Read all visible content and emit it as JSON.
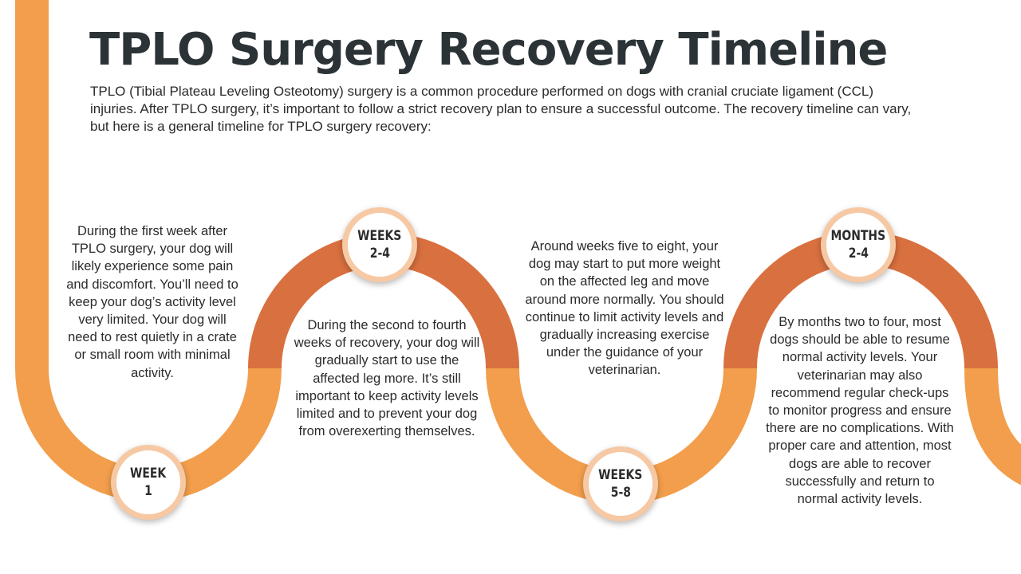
{
  "title": "TPLO Surgery Recovery Timeline",
  "intro": "TPLO (Tibial Plateau Leveling Osteotomy) surgery is a common procedure performed on dogs with cranial cruciate ligament (CCL) injuries. After TPLO surgery, it’s important to follow a strict recovery plan to ensure a successful outcome. The recovery timeline can vary, but here is a general timeline for TPLO surgery recovery:",
  "colors": {
    "light_orange": "#f29e4c",
    "dark_orange": "#d9703f",
    "badge_ring": "#f6c9a4",
    "title": "#2b3336"
  },
  "steps": [
    {
      "badge_line1": "WEEK",
      "badge_line2": "1",
      "text": "During the first week after TPLO surgery, your dog will likely experience some pain and discomfort. You’ll need to keep your dog’s activity level very limited. Your dog will need to rest quietly in a crate or small room with minimal activity."
    },
    {
      "badge_line1": "WEEKS",
      "badge_line2": "2-4",
      "text": "During the second to fourth weeks of recovery, your dog will gradually start to use the affected leg more. It’s still important to keep activity levels limited and to prevent your dog from overexerting themselves."
    },
    {
      "badge_line1": "WEEKS",
      "badge_line2": "5-8",
      "text": "Around weeks five to eight, your dog may start to put more weight on the affected leg and move around more normally. You should continue to limit activity levels and gradually increasing exercise under the guidance of your veterinarian."
    },
    {
      "badge_line1": "MONTHS",
      "badge_line2": "2-4",
      "text": "By months two to four, most dogs should be able to resume normal activity levels. Your veterinarian may also recommend regular check-ups to monitor progress and ensure there are no complications. With proper care and attention, most dogs are able to recover successfully and return to normal activity levels."
    }
  ]
}
